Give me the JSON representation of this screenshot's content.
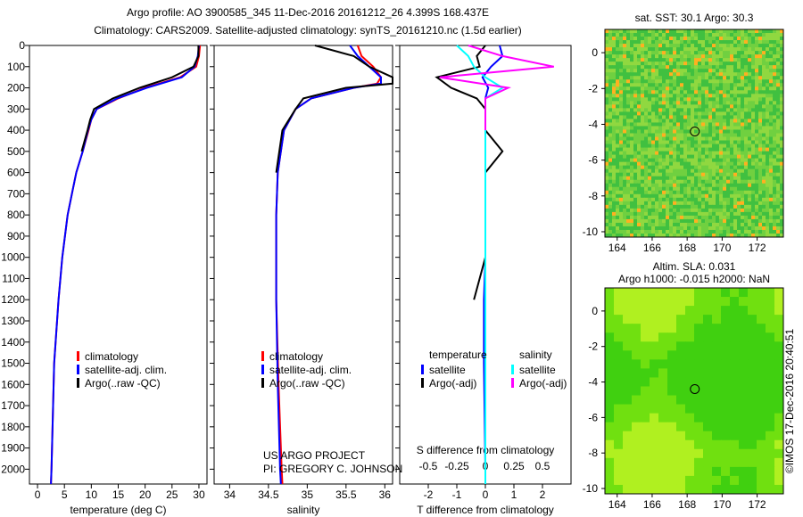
{
  "title_line1": "Argo profile: AO 3900585_345 11-Dec-2016 20161212_26 4.399S 168.437E",
  "title_line2": "Climatology: CARS2009. Satellite-adjusted climatology: synTS_20161210.nc (1.5d earlier)",
  "colors": {
    "climatology": "#ff0000",
    "satellite": "#0000ff",
    "argo": "#000000",
    "sal_satellite": "#00ffff",
    "sal_argo": "#ff00ff"
  },
  "depth_ticks": [
    0,
    100,
    200,
    300,
    400,
    500,
    600,
    700,
    800,
    900,
    1000,
    1100,
    1200,
    1300,
    1400,
    1500,
    1600,
    1700,
    1800,
    1900,
    2000
  ],
  "chart_data": [
    {
      "type": "line",
      "xlabel": "temperature (deg C)",
      "xticks": [
        0,
        5,
        10,
        15,
        20,
        25,
        30
      ],
      "xlim": [
        -1.5,
        31.5
      ],
      "ylim": [
        2070,
        0
      ],
      "legend": [
        "climatology",
        "satellite-adj. clim.",
        "Argo(..raw -QC)"
      ],
      "depth": [
        0,
        50,
        100,
        150,
        200,
        250,
        300,
        350,
        400,
        500,
        600,
        700,
        800,
        1000,
        1200,
        1500,
        2000,
        2070
      ],
      "series": [
        {
          "name": "climatology",
          "values": [
            30.2,
            30,
            29.5,
            26.5,
            20,
            15,
            11,
            10,
            9.5,
            8.4,
            7.2,
            6.4,
            5.6,
            4.6,
            3.9,
            3.1,
            2.6,
            2.5
          ]
        },
        {
          "name": "satellite-adj. clim.",
          "values": [
            30,
            29.8,
            29.2,
            26.8,
            20.3,
            14.8,
            11,
            10,
            9.4,
            8.4,
            7.2,
            6.4,
            5.6,
            4.6,
            3.9,
            3.1,
            2.6,
            2.5
          ]
        },
        {
          "name": "Argo(..raw -QC)",
          "values": [
            29.9,
            29.9,
            29,
            25,
            19,
            14,
            10.5,
            9.8,
            9.3,
            8.2,
            null,
            null,
            null,
            null,
            null,
            null,
            null,
            null
          ]
        }
      ]
    },
    {
      "type": "line",
      "xlabel": "salinity",
      "xticks": [
        34,
        34.5,
        35,
        35.5,
        36
      ],
      "xlim": [
        33.8,
        36.1
      ],
      "ylim": [
        2070,
        0
      ],
      "legend": [
        "climatology",
        "satellite-adj. clim.",
        "Argo(..raw -QC)"
      ],
      "annotation": [
        "US ARGO PROJECT",
        "PI: GREGORY C. JOHNSON"
      ],
      "depth": [
        0,
        50,
        100,
        150,
        180,
        200,
        250,
        300,
        400,
        600,
        800,
        1200,
        1600,
        2000,
        2070
      ],
      "series": [
        {
          "name": "climatology",
          "values": [
            35.65,
            35.7,
            35.85,
            35.95,
            35.9,
            35.6,
            35.05,
            34.85,
            34.7,
            34.62,
            34.6,
            34.6,
            34.63,
            34.67,
            34.68
          ]
        },
        {
          "name": "satellite-adj. clim.",
          "values": [
            35.55,
            35.65,
            35.8,
            35.95,
            35.95,
            35.6,
            35.05,
            34.85,
            34.7,
            34.62,
            34.6,
            34.6,
            34.62,
            34.65,
            34.66
          ]
        },
        {
          "name": "Argo(..raw -QC)",
          "values": [
            35.1,
            35.6,
            35.8,
            36.1,
            36.1,
            35.5,
            34.95,
            34.85,
            34.68,
            34.6,
            null,
            null,
            null,
            null,
            null
          ]
        }
      ]
    },
    {
      "type": "line",
      "xlabel": "T difference from climatology",
      "xlabel2": "S difference from climatology",
      "xticks": [
        -2,
        -1,
        0,
        1,
        2
      ],
      "xticks2": [
        -0.5,
        -0.25,
        0,
        0.25,
        0.5
      ],
      "xlim": [
        -3,
        3
      ],
      "ylim": [
        2070,
        0
      ],
      "legend_temperature": {
        "title": "temperature",
        "items": [
          "satellite",
          "Argo(-adj)"
        ]
      },
      "legend_salinity": {
        "title": "salinity",
        "items": [
          "satellite",
          "Argo(-adj)"
        ]
      },
      "depth": [
        0,
        50,
        100,
        150,
        200,
        250,
        300,
        400,
        500,
        600,
        800,
        1000,
        1200,
        1500,
        2000,
        2070
      ],
      "series": [
        {
          "name": "T satellite",
          "values": [
            0.5,
            0.6,
            0.2,
            -0.1,
            0.1,
            0,
            0,
            0,
            0,
            0,
            0,
            0,
            -0.05,
            -0.05,
            0,
            0
          ]
        },
        {
          "name": "T Argo(-adj)",
          "values": [
            0,
            -0.3,
            -0.2,
            -1.7,
            -1.2,
            -0.3,
            0,
            0,
            0.6,
            0,
            0,
            0,
            -0.4,
            null,
            null,
            null
          ]
        },
        {
          "name": "S satellite",
          "values": [
            -0.25,
            -0.15,
            -0.1,
            0,
            0.15,
            0,
            0,
            0,
            0,
            0,
            0,
            0,
            0,
            0,
            0,
            0
          ]
        },
        {
          "name": "S Argo(-adj)",
          "values": [
            -0.15,
            0.15,
            0.6,
            -0.4,
            0.2,
            0,
            0,
            0,
            null,
            null,
            null,
            null,
            null,
            null,
            null,
            null
          ]
        }
      ]
    },
    {
      "type": "heatmap",
      "title": "sat. SST: 30.1  Argo: 30.3",
      "xticks": [
        164,
        166,
        168,
        170,
        172
      ],
      "yticks": [
        0,
        -2,
        -4,
        -6,
        -8,
        -10
      ],
      "xlim": [
        163.3,
        173.5
      ],
      "ylim": [
        -10.3,
        1.3
      ],
      "marker": [
        168.437,
        -4.399
      ]
    },
    {
      "type": "heatmap",
      "title": "Altim. SLA: 0.031",
      "subtitle": "Argo h1000: -0.015 h2000: NaN",
      "xticks": [
        164,
        166,
        168,
        170,
        172
      ],
      "yticks": [
        0,
        -2,
        -4,
        -6,
        -8,
        -10
      ],
      "xlim": [
        163.3,
        173.5
      ],
      "ylim": [
        -10.3,
        1.3
      ],
      "marker": [
        168.437,
        -4.399
      ]
    }
  ],
  "footer_stamp": "©IMOS 17-Dec-2016 20:40:51"
}
